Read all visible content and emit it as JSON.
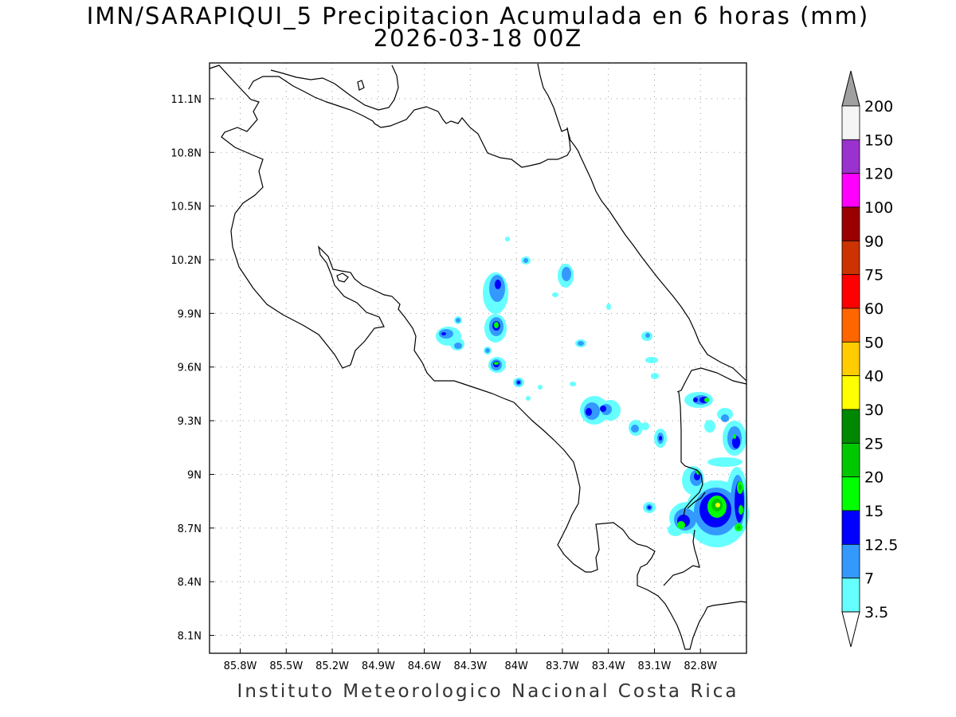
{
  "title": {
    "line1": "IMN/SARAPIQUI_5 Precipitacion Acumulada en 6 horas (mm)",
    "line2": "2026-03-18 00Z"
  },
  "footer": "Instituto Meteorologico Nacional Costa Rica",
  "map": {
    "lon_range": [
      -86.0,
      -82.5
    ],
    "lat_range": [
      8.0,
      11.3
    ],
    "lon_ticks": [
      "85.8W",
      "85.5W",
      "85.2W",
      "84.9W",
      "84.6W",
      "84.3W",
      "84W",
      "83.7W",
      "83.4W",
      "83.1W",
      "82.8W"
    ],
    "lat_ticks": [
      "11.1N",
      "10.8N",
      "10.5N",
      "10.2N",
      "9.9N",
      "9.6N",
      "9.3N",
      "9N",
      "8.7N",
      "8.4N",
      "8.1N"
    ],
    "grid": "dotted"
  },
  "colorbar": {
    "labels": [
      "200",
      "150",
      "120",
      "100",
      "90",
      "75",
      "60",
      "50",
      "40",
      "30",
      "25",
      "20",
      "15",
      "12.5",
      "7",
      "3.5"
    ],
    "colors": [
      "#a0a0a0",
      "#f5f5f5",
      "#9a32cd",
      "#ff00ff",
      "#9a0000",
      "#cd3300",
      "#ff0000",
      "#ff6600",
      "#ffcc00",
      "#ffff00",
      "#008800",
      "#00c800",
      "#00ff00",
      "#0000ff",
      "#3399ff",
      "#66ffff",
      "#ffffff"
    ]
  },
  "precip_colors": {
    "light": "#66ffff",
    "medium": "#3399ff",
    "strong": "#0000ff",
    "heavy": "#00ff00",
    "very_heavy": "#00c800",
    "extreme": "#008800",
    "max": "#ffff00"
  }
}
